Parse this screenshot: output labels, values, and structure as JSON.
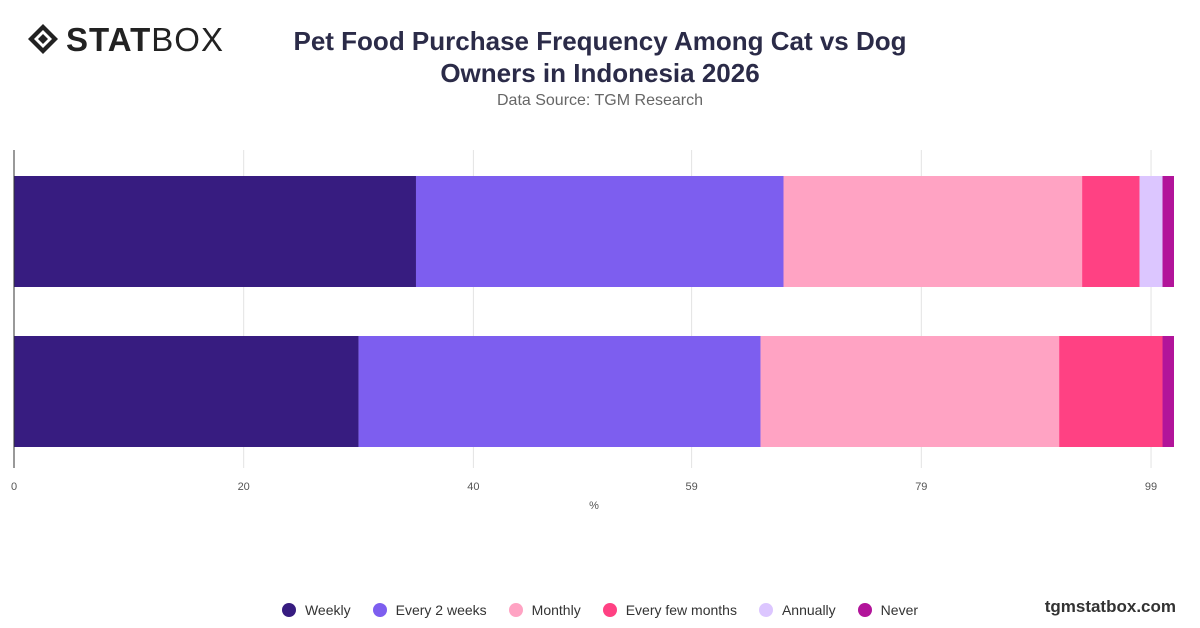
{
  "brand": {
    "logo_bold": "STAT",
    "logo_light": "BOX",
    "site": "tgmstatbox.com"
  },
  "chart_data": {
    "type": "bar",
    "orientation": "horizontal",
    "stacked": true,
    "title": "Pet Food Purchase Frequency Among Cat vs Dog Owners in Indonesia 2026",
    "subtitle": "Data Source: TGM Research",
    "xlabel": "%",
    "ylabel": "",
    "xlim": [
      0,
      101
    ],
    "xticks": [
      0,
      20,
      40,
      59,
      79,
      99
    ],
    "grid": true,
    "legend_position": "bottom",
    "categories": [
      "",
      ""
    ],
    "series": [
      {
        "name": "Weekly",
        "color": "#371c80",
        "values": [
          35,
          30
        ]
      },
      {
        "name": "Every 2 weeks",
        "color": "#7d5eef",
        "values": [
          32,
          35
        ]
      },
      {
        "name": "Monthly",
        "color": "#ffa3c3",
        "values": [
          26,
          26
        ]
      },
      {
        "name": "Every few months",
        "color": "#ff4183",
        "values": [
          5,
          9
        ]
      },
      {
        "name": "Annually",
        "color": "#dcc6ff",
        "values": [
          2,
          0
        ]
      },
      {
        "name": "Never",
        "color": "#b2149a",
        "values": [
          1,
          1
        ]
      }
    ]
  }
}
